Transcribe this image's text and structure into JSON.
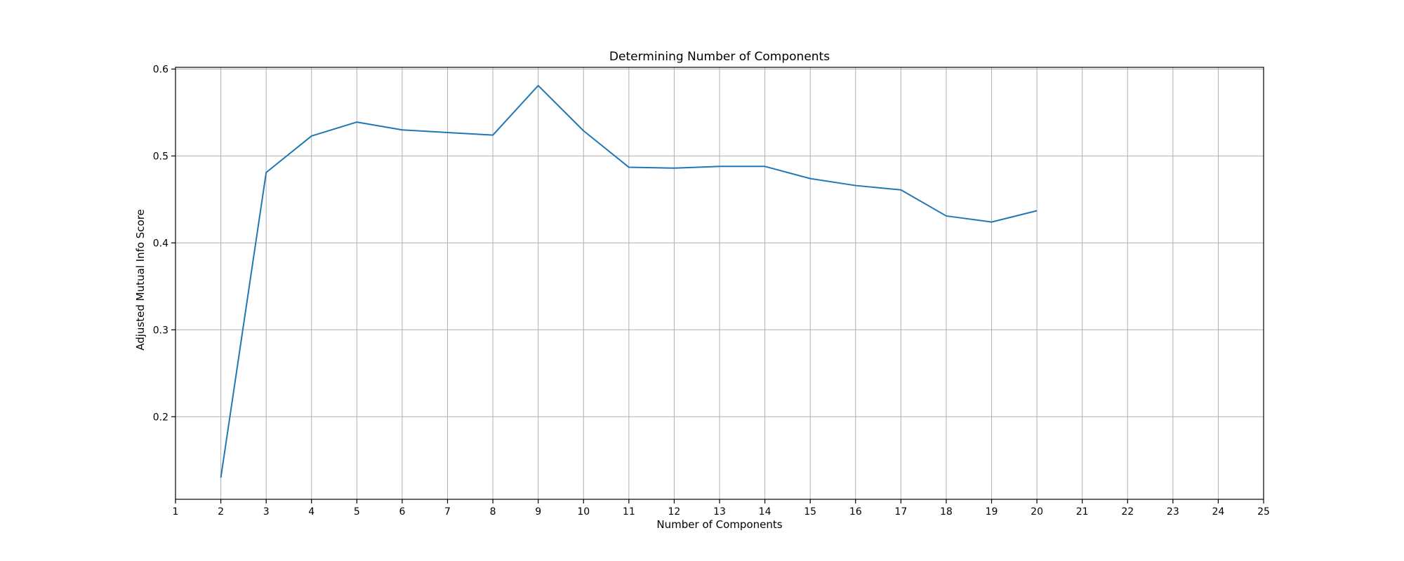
{
  "chart_data": {
    "type": "line",
    "title": "Determining Number of Components",
    "xlabel": "Number of Components",
    "ylabel": "Adjusted Mutual Info Score",
    "xlim": [
      1,
      25
    ],
    "ylim": [
      0.105,
      0.602
    ],
    "xticks": [
      1,
      2,
      3,
      4,
      5,
      6,
      7,
      8,
      9,
      10,
      11,
      12,
      13,
      14,
      15,
      16,
      17,
      18,
      19,
      20,
      21,
      22,
      23,
      24,
      25
    ],
    "yticks": [
      0.2,
      0.3,
      0.4,
      0.5,
      0.6
    ],
    "grid": true,
    "line_color": "#1f77b4",
    "series": [
      {
        "x": [
          2,
          3,
          4,
          5,
          6,
          7,
          8,
          9,
          10,
          11,
          12,
          13,
          14,
          15,
          16,
          17,
          18,
          19,
          20
        ],
        "values": [
          0.13,
          0.481,
          0.523,
          0.539,
          0.53,
          0.527,
          0.524,
          0.581,
          0.529,
          0.487,
          0.486,
          0.488,
          0.488,
          0.474,
          0.466,
          0.461,
          0.431,
          0.424,
          0.437
        ]
      }
    ]
  }
}
